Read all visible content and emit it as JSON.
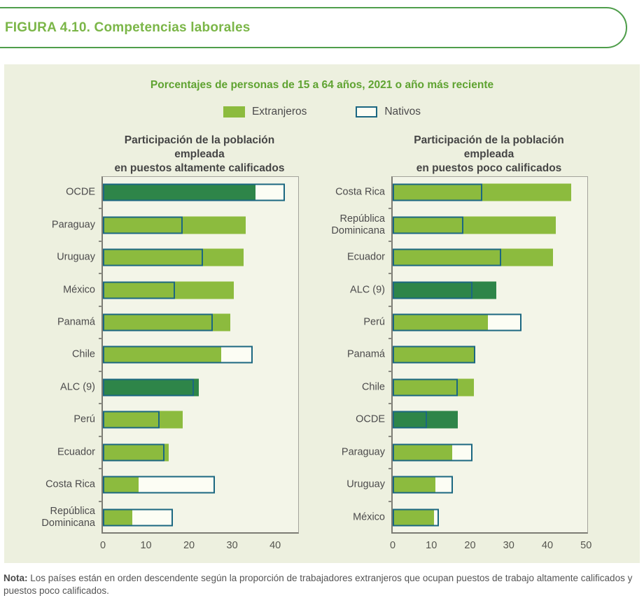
{
  "figure_title": "FIGURA 4.10. Competencias laborales",
  "panel": {
    "subtitle": "Porcentajes de personas de 15 a 64 años, 2021 o año más reciente",
    "legend": [
      {
        "label": "Extranjeros",
        "style": "filled"
      },
      {
        "label": "Nativos",
        "style": "outline"
      }
    ]
  },
  "colors": {
    "extranjeros_green": "#8cbb3e",
    "emphasis_dark_green": "#2e8549",
    "nativos_border_teal": "#1b6781",
    "nativos_fill": "#fcfdf4",
    "panel_background": "#edf0df",
    "plot_background": "#f3f5e8",
    "figure_title_green": "#7bb648",
    "subtitle_green": "#5fa331",
    "text_dark": "#4c4b4c"
  },
  "chart_data": [
    {
      "type": "bar",
      "orientation": "horizontal",
      "title_line1": "Participación de la población empleada",
      "title_line2": "en puestos altamente calificados",
      "xlim": [
        0,
        45.5
      ],
      "xticks": [
        0,
        10,
        20,
        30,
        40
      ],
      "series": [
        "Extranjeros",
        "Nativos"
      ],
      "rows": [
        {
          "label": "OCDE",
          "extranjeros": 35.4,
          "nativos": 42.3,
          "emphasis": true
        },
        {
          "label": "Paraguay",
          "extranjeros": 33.1,
          "nativos": 18.6,
          "emphasis": false
        },
        {
          "label": "Uruguay",
          "extranjeros": 32.7,
          "nativos": 23.3,
          "emphasis": false
        },
        {
          "label": "México",
          "extranjeros": 30.4,
          "nativos": 16.8,
          "emphasis": false
        },
        {
          "label": "Panamá",
          "extranjeros": 29.5,
          "nativos": 25.5,
          "emphasis": false
        },
        {
          "label": "Chile",
          "extranjeros": 27.5,
          "nativos": 34.7,
          "emphasis": false
        },
        {
          "label": "ALC (9)",
          "extranjeros": 22.3,
          "nativos": 21.1,
          "emphasis": true
        },
        {
          "label": "Perú",
          "extranjeros": 18.6,
          "nativos": 13.1,
          "emphasis": false
        },
        {
          "label": "Ecuador",
          "extranjeros": 15.3,
          "nativos": 14.3,
          "emphasis": false
        },
        {
          "label": "Costa Rica",
          "extranjeros": 8.3,
          "nativos": 26.0,
          "emphasis": false
        },
        {
          "label": "República Dominicana",
          "extranjeros": 6.9,
          "nativos": 16.3,
          "emphasis": false
        }
      ]
    },
    {
      "type": "bar",
      "orientation": "horizontal",
      "title_line1": "Participación de la población empleada",
      "title_line2": "en puestos poco calificados",
      "xlim": [
        0,
        50.5
      ],
      "xticks": [
        0,
        10,
        20,
        30,
        40,
        50
      ],
      "series": [
        "Extranjeros",
        "Nativos"
      ],
      "rows": [
        {
          "label": "Costa Rica",
          "extranjeros": 46.2,
          "nativos": 23.2,
          "emphasis": false
        },
        {
          "label": "República Dominicana",
          "extranjeros": 42.2,
          "nativos": 18.3,
          "emphasis": false
        },
        {
          "label": "Ecuador",
          "extranjeros": 41.4,
          "nativos": 28.1,
          "emphasis": false
        },
        {
          "label": "ALC (9)",
          "extranjeros": 26.7,
          "nativos": 20.7,
          "emphasis": true
        },
        {
          "label": "Perú",
          "extranjeros": 24.6,
          "nativos": 33.3,
          "emphasis": false
        },
        {
          "label": "Panamá",
          "extranjeros": 21.3,
          "nativos": 21.3,
          "emphasis": false
        },
        {
          "label": "Chile",
          "extranjeros": 21.0,
          "nativos": 16.9,
          "emphasis": false
        },
        {
          "label": "OCDE",
          "extranjeros": 16.9,
          "nativos": 8.8,
          "emphasis": true
        },
        {
          "label": "Paraguay",
          "extranjeros": 15.4,
          "nativos": 20.7,
          "emphasis": false
        },
        {
          "label": "Uruguay",
          "extranjeros": 11.1,
          "nativos": 15.6,
          "emphasis": false
        },
        {
          "label": "México",
          "extranjeros": 10.6,
          "nativos": 11.9,
          "emphasis": false
        }
      ]
    }
  ],
  "note": {
    "label": "Nota:",
    "text": " Los países están en orden descendente según la proporción de trabajadores extranjeros que ocupan puestos de trabajo altamente calificados y puestos poco calificados."
  }
}
